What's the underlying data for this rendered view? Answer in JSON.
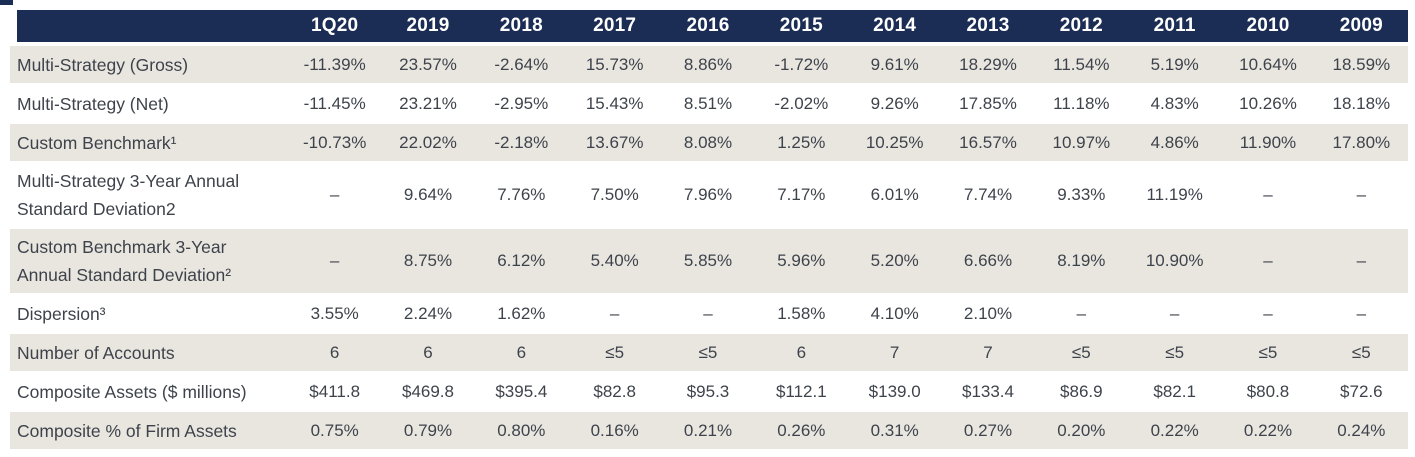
{
  "colors": {
    "header_bg": "#1b2c55",
    "stripe_bg": "#e9e6e0",
    "text": "#3e434b",
    "header_text": "#ffffff"
  },
  "table": {
    "columns": [
      "1Q20",
      "2019",
      "2018",
      "2017",
      "2016",
      "2015",
      "2014",
      "2013",
      "2012",
      "2011",
      "2010",
      "2009"
    ],
    "rows": [
      {
        "label": "Multi-Strategy (Gross)",
        "tall": false,
        "striped": true,
        "values": [
          "-11.39%",
          "23.57%",
          "-2.64%",
          "15.73%",
          "8.86%",
          "-1.72%",
          "9.61%",
          "18.29%",
          "11.54%",
          "5.19%",
          "10.64%",
          "18.59%"
        ]
      },
      {
        "label": "Multi-Strategy (Net)",
        "tall": false,
        "striped": false,
        "values": [
          "-11.45%",
          "23.21%",
          "-2.95%",
          "15.43%",
          "8.51%",
          "-2.02%",
          "9.26%",
          "17.85%",
          "11.18%",
          "4.83%",
          "10.26%",
          "18.18%"
        ]
      },
      {
        "label": "Custom Benchmark¹",
        "tall": false,
        "striped": true,
        "values": [
          "-10.73%",
          "22.02%",
          "-2.18%",
          "13.67%",
          "8.08%",
          "1.25%",
          "10.25%",
          "16.57%",
          "10.97%",
          "4.86%",
          "11.90%",
          "17.80%"
        ]
      },
      {
        "label": "Multi-Strategy 3-Year Annual\nStandard Deviation2",
        "tall": true,
        "striped": false,
        "values": [
          "–",
          "9.64%",
          "7.76%",
          "7.50%",
          "7.96%",
          "7.17%",
          "6.01%",
          "7.74%",
          "9.33%",
          "11.19%",
          "–",
          "–"
        ]
      },
      {
        "label": "Custom Benchmark 3-Year\nAnnual Standard Deviation²",
        "tall": true,
        "striped": true,
        "values": [
          "–",
          "8.75%",
          "6.12%",
          "5.40%",
          "5.85%",
          "5.96%",
          "5.20%",
          "6.66%",
          "8.19%",
          "10.90%",
          "–",
          "–"
        ]
      },
      {
        "label": "Dispersion³",
        "tall": false,
        "striped": false,
        "values": [
          "3.55%",
          "2.24%",
          "1.62%",
          "–",
          "–",
          "1.58%",
          "4.10%",
          "2.10%",
          "–",
          "–",
          "–",
          "–"
        ]
      },
      {
        "label": "Number of Accounts",
        "tall": false,
        "striped": true,
        "values": [
          "6",
          "6",
          "6",
          "≤5",
          "≤5",
          "6",
          "7",
          "7",
          "≤5",
          "≤5",
          "≤5",
          "≤5"
        ]
      },
      {
        "label": "Composite Assets ($ millions)",
        "tall": false,
        "striped": false,
        "values": [
          "$411.8",
          "$469.8",
          "$395.4",
          "$82.8",
          "$95.3",
          "$112.1",
          "$139.0",
          "$133.4",
          "$86.9",
          "$82.1",
          "$80.8",
          "$72.6"
        ]
      },
      {
        "label": "Composite % of Firm Assets",
        "tall": false,
        "striped": true,
        "values": [
          "0.75%",
          "0.79%",
          "0.80%",
          "0.16%",
          "0.21%",
          "0.26%",
          "0.31%",
          "0.27%",
          "0.20%",
          "0.22%",
          "0.22%",
          "0.24%"
        ]
      }
    ]
  }
}
